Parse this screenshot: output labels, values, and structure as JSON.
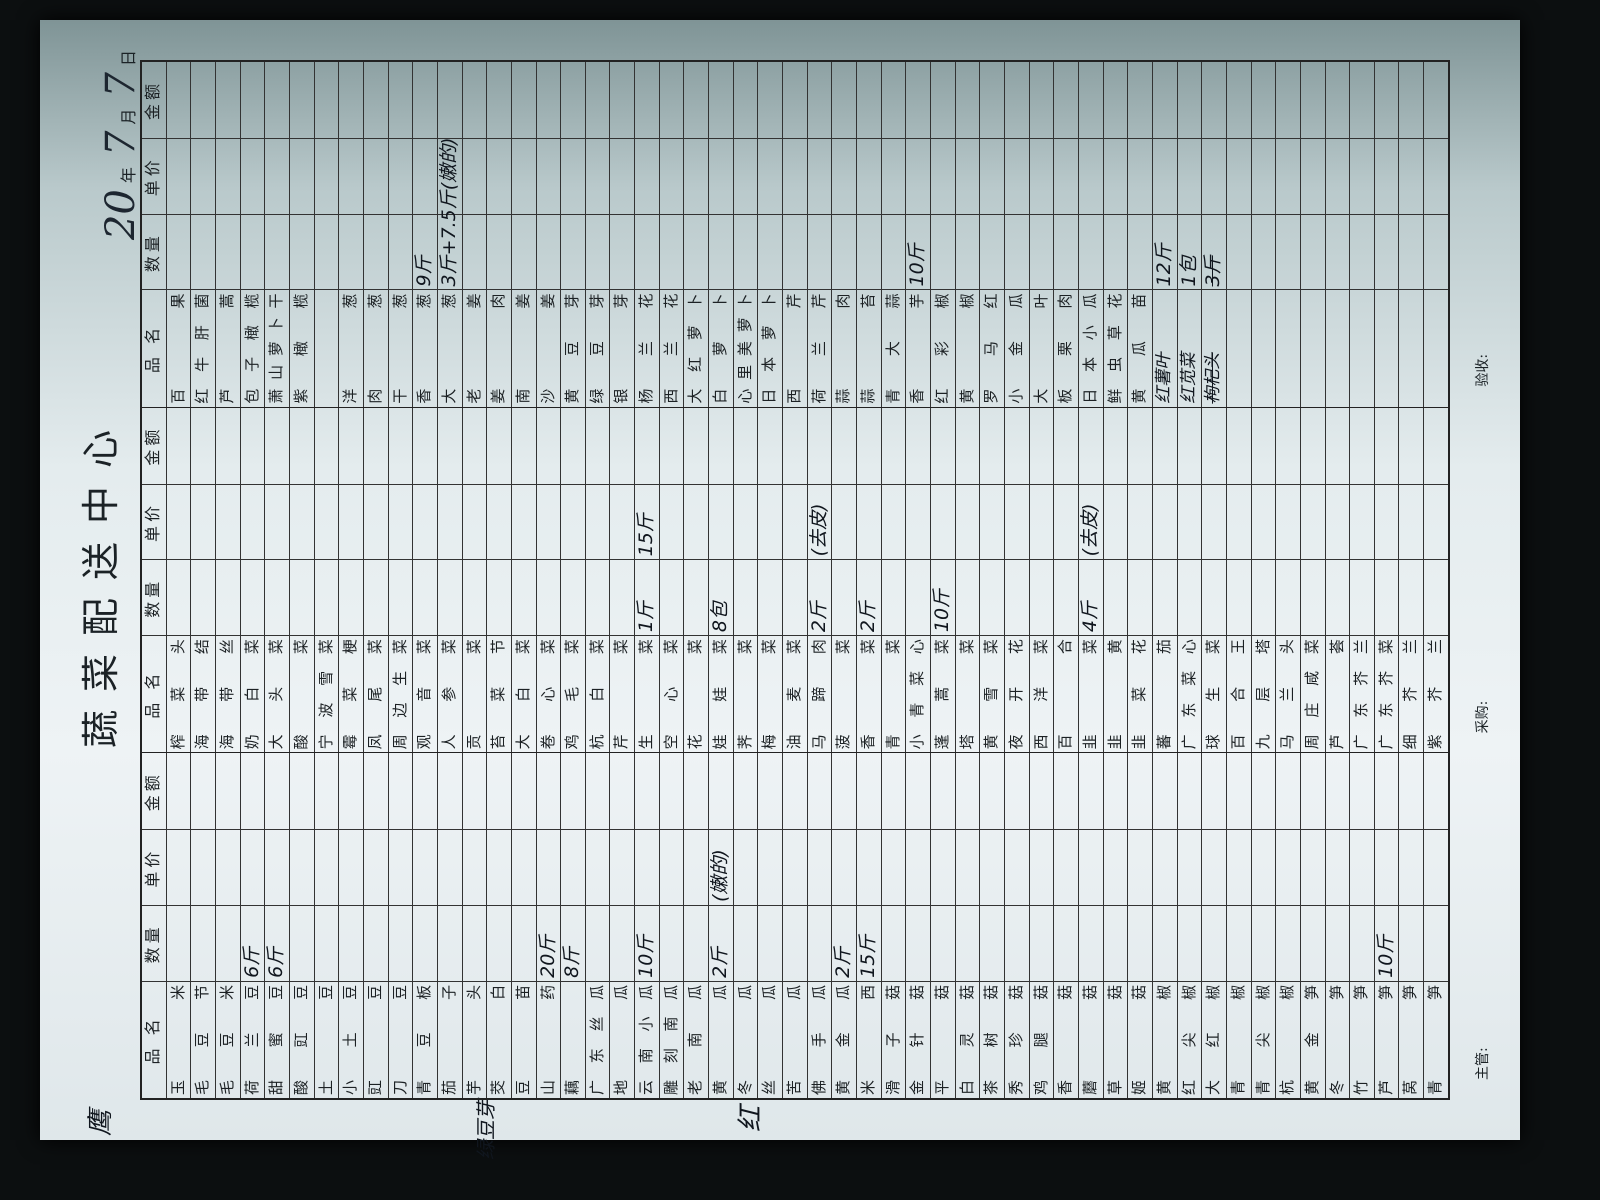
{
  "title": "蔬菜配送中心",
  "date": {
    "year_prefix": "20",
    "year_hw": "20",
    "year_label": "年",
    "month": "7",
    "month_label": "月",
    "day": "7",
    "day_label": "日"
  },
  "headers": {
    "name": "品 名",
    "qty": "数量",
    "price": "单价",
    "amount": "金额"
  },
  "groups": [
    {
      "rows": [
        {
          "name": "玉米"
        },
        {
          "name": "毛豆节"
        },
        {
          "name": "毛豆米"
        },
        {
          "name": "荷兰豆",
          "qty": "6斤"
        },
        {
          "name": "甜蜜豆",
          "qty": "6斤"
        },
        {
          "name": "酸豇豆"
        },
        {
          "name": "土豆"
        },
        {
          "name": "小土豆"
        },
        {
          "name": "豇豆"
        },
        {
          "name": "刀豆"
        },
        {
          "name": "青豆板"
        },
        {
          "name": "茄子"
        },
        {
          "name": "芋头"
        },
        {
          "name": "茭白"
        },
        {
          "name": "豆苗"
        },
        {
          "name": "山药",
          "qty": "20斤"
        },
        {
          "name": "藕",
          "qty": "8斤"
        },
        {
          "name": "广东丝瓜"
        },
        {
          "name": "地瓜"
        },
        {
          "name": "云南小瓜",
          "qty": "10斤"
        },
        {
          "name": "雕刻南瓜"
        },
        {
          "name": "老南瓜"
        },
        {
          "name": "黄瓜",
          "qty": "2斤",
          "price": "(嫩的)"
        },
        {
          "name": "冬瓜"
        },
        {
          "name": "丝瓜"
        },
        {
          "name": "苦瓜"
        },
        {
          "name": "佛手瓜"
        },
        {
          "name": "黄金瓜",
          "qty": "2斤"
        },
        {
          "name": "米西",
          "qty": "15斤"
        },
        {
          "name": "滑子菇"
        },
        {
          "name": "金针菇"
        },
        {
          "name": "平菇"
        },
        {
          "name": "白灵菇"
        },
        {
          "name": "茶树菇"
        },
        {
          "name": "秀珍菇"
        },
        {
          "name": "鸡腿菇"
        },
        {
          "name": "香菇"
        },
        {
          "name": "蘑菇"
        },
        {
          "name": "草菇"
        },
        {
          "name": "姬菇"
        },
        {
          "name": "黄椒"
        },
        {
          "name": "红尖椒"
        },
        {
          "name": "大红椒"
        },
        {
          "name": "青椒"
        },
        {
          "name": "青尖椒"
        },
        {
          "name": "杭椒"
        },
        {
          "name": "黄金笋"
        },
        {
          "name": "冬笋"
        },
        {
          "name": "竹笋"
        },
        {
          "name": "芦笋",
          "qty": "10斤"
        },
        {
          "name": "莴笋"
        },
        {
          "name": "青笋"
        }
      ]
    },
    {
      "rows": [
        {
          "name": "榨菜头"
        },
        {
          "name": "海带结"
        },
        {
          "name": "海带丝"
        },
        {
          "name": "奶白菜"
        },
        {
          "name": "大头菜"
        },
        {
          "name": "酸菜"
        },
        {
          "name": "宁波雪菜"
        },
        {
          "name": "霉菜梗"
        },
        {
          "name": "凤尾菜"
        },
        {
          "name": "周边生菜"
        },
        {
          "name": "观音菜"
        },
        {
          "name": "人参菜"
        },
        {
          "name": "贡菜"
        },
        {
          "name": "苔菜节"
        },
        {
          "name": "大白菜"
        },
        {
          "name": "卷心菜"
        },
        {
          "name": "鸡毛菜"
        },
        {
          "name": "杭白菜"
        },
        {
          "name": "芹菜"
        },
        {
          "name": "生菜",
          "qty": "1斤",
          "price": "15斤"
        },
        {
          "name": "空心菜"
        },
        {
          "name": "花菜"
        },
        {
          "name": "娃娃菜",
          "qty": "8包"
        },
        {
          "name": "荠菜"
        },
        {
          "name": "梅菜"
        },
        {
          "name": "油麦菜"
        },
        {
          "name": "马蹄肉",
          "qty": "2斤",
          "price": "(去皮)"
        },
        {
          "name": "菠菜"
        },
        {
          "name": "香菜",
          "qty": "2斤"
        },
        {
          "name": "青菜"
        },
        {
          "name": "小青菜心"
        },
        {
          "name": "蓬蒿菜",
          "qty": "10斤"
        },
        {
          "name": "塔菜"
        },
        {
          "name": "黄雪菜"
        },
        {
          "name": "夜开花"
        },
        {
          "name": "西洋菜"
        },
        {
          "name": "百合"
        },
        {
          "name": "韭菜",
          "qty": "4斤",
          "price": "(去皮)"
        },
        {
          "name": "韭黄"
        },
        {
          "name": "韭菜花"
        },
        {
          "name": "蕃茄"
        },
        {
          "name": "广东菜心"
        },
        {
          "name": "球生菜"
        },
        {
          "name": "百合王"
        },
        {
          "name": "九层塔"
        },
        {
          "name": "马兰头"
        },
        {
          "name": "周庄咸菜"
        },
        {
          "name": "芦荟"
        },
        {
          "name": "广东芥兰"
        },
        {
          "name": "广东芥菜"
        },
        {
          "name": "细芥兰"
        },
        {
          "name": "紫芥兰"
        }
      ]
    },
    {
      "rows": [
        {
          "name": "百果"
        },
        {
          "name": "红牛肝菌"
        },
        {
          "name": "芦蒿"
        },
        {
          "name": "包子橄榄"
        },
        {
          "name": "萧山萝卜干"
        },
        {
          "name": "紫橄榄"
        },
        {
          "name": ""
        },
        {
          "name": "洋葱"
        },
        {
          "name": "肉葱"
        },
        {
          "name": "干葱"
        },
        {
          "name": "香葱",
          "qty": "9斤"
        },
        {
          "name": "大葱",
          "qty": "3斤+7.5斤(嫩的)"
        },
        {
          "name": "老姜"
        },
        {
          "name": "姜肉"
        },
        {
          "name": "南姜"
        },
        {
          "name": "沙姜"
        },
        {
          "name": "黄豆芽"
        },
        {
          "name": "绿豆芽"
        },
        {
          "name": "银芽"
        },
        {
          "name": "杨兰花"
        },
        {
          "name": "西兰花"
        },
        {
          "name": "大红萝卜"
        },
        {
          "name": "白萝卜"
        },
        {
          "name": "心里美萝卜"
        },
        {
          "name": "日本萝卜"
        },
        {
          "name": "西芹"
        },
        {
          "name": "荷兰芹"
        },
        {
          "name": "蒜肉"
        },
        {
          "name": "蒜苔"
        },
        {
          "name": "青大蒜"
        },
        {
          "name": "香芋",
          "qty": "10斤"
        },
        {
          "name": "红彩椒"
        },
        {
          "name": "黄椒"
        },
        {
          "name": "罗马红"
        },
        {
          "name": "小金瓜"
        },
        {
          "name": "大叶"
        },
        {
          "name": "板栗肉"
        },
        {
          "name": "日本小瓜"
        },
        {
          "name": "鲜虫草花"
        },
        {
          "name": "黄瓜苗"
        },
        {
          "name": "红薯叶",
          "qty": "12斤",
          "handwritten": true
        },
        {
          "name": "红苋菜",
          "qty": "1包",
          "handwritten": true
        },
        {
          "name": "枸杞头",
          "qty": "3斤",
          "handwritten": true,
          "struck": true
        },
        {
          "name": ""
        },
        {
          "name": ""
        },
        {
          "name": ""
        },
        {
          "name": ""
        },
        {
          "name": ""
        },
        {
          "name": ""
        },
        {
          "name": ""
        },
        {
          "name": ""
        },
        {
          "name": ""
        }
      ]
    }
  ],
  "footer": {
    "manager": "主管:",
    "purchaser": "采购:",
    "inspector": "验收:"
  },
  "margin_notes": {
    "top_left": "鹰",
    "left_1": "绿豆芽",
    "left_2": "红"
  },
  "colors": {
    "ink": "#10161e",
    "paper": "#e6eef0",
    "background": "#0c0f10"
  }
}
